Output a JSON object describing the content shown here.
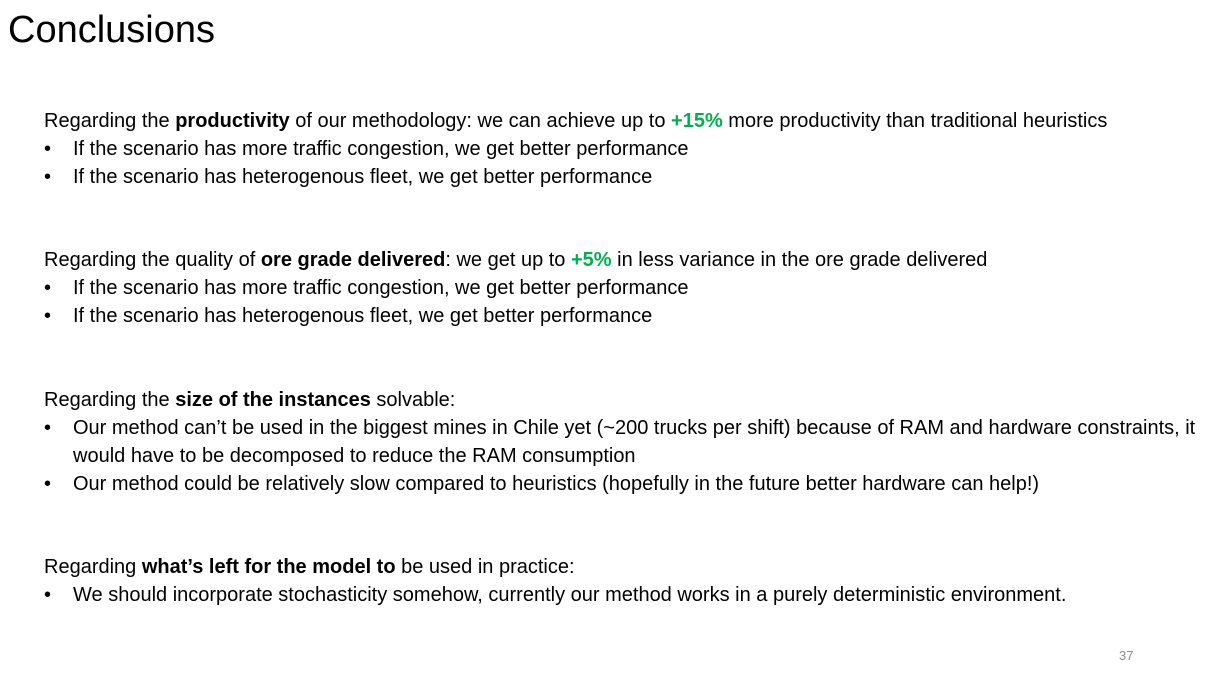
{
  "slide": {
    "title": "Conclusions",
    "page_number": "37",
    "accent_color": "#00b050"
  },
  "sections": [
    {
      "lead": {
        "pre": "Regarding the ",
        "bold": "productivity",
        "mid": " of our methodology: we can achieve up to ",
        "highlight": "+15%",
        "post": " more productivity than traditional heuristics"
      },
      "bullets": [
        "If the scenario has more traffic congestion, we get better performance",
        "If the scenario has heterogenous fleet, we get better performance"
      ]
    },
    {
      "lead": {
        "pre": "Regarding the quality of ",
        "bold": "ore grade delivered",
        "mid": ": we get up to ",
        "highlight": "+5%",
        "post": " in less variance in the ore grade delivered"
      },
      "bullets": [
        "If the scenario has more traffic congestion, we get better performance",
        "If the scenario has heterogenous fleet, we get better performance"
      ]
    },
    {
      "lead": {
        "pre": "Regarding the ",
        "bold": "size of the instances",
        "post": " solvable:"
      },
      "bullets": [
        "Our method can’t be used in the biggest mines in Chile yet (~200 trucks per shift) because of RAM and hardware constraints, it would have to be decomposed to reduce the RAM consumption",
        "Our method could be relatively slow compared to heuristics (hopefully in the future better hardware can help!)"
      ]
    },
    {
      "lead": {
        "pre": "Regarding ",
        "bold": "what’s left for the model to",
        "post": " be used in practice:"
      },
      "bullets": [
        "We should incorporate stochasticity somehow, currently our method works in a purely deterministic environment."
      ]
    }
  ]
}
